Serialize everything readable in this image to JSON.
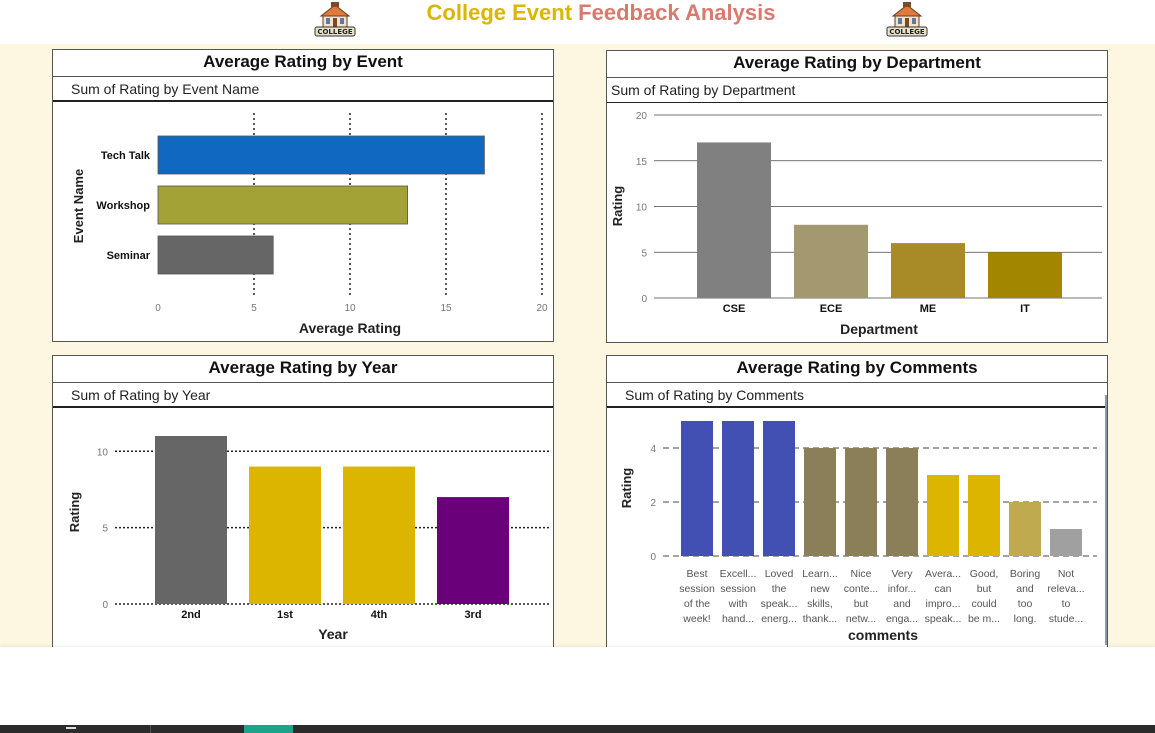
{
  "header": {
    "title_part1": "College Event",
    "title_part2": "Feedback Analysis",
    "logo_text": "COLLEGE"
  },
  "colors": {
    "title_gold": "#d9b600",
    "title_rose": "#d97a6e",
    "canvas_bg": "#fdf6e0"
  },
  "chart_data": [
    {
      "id": "event",
      "type": "bar",
      "orientation": "horizontal",
      "title": "Average Rating by Event",
      "subtitle": "Sum of Rating by Event Name",
      "xlabel": "Average Rating",
      "ylabel": "Event Name",
      "categories": [
        "Tech Talk",
        "Workshop",
        "Seminar"
      ],
      "values": [
        17,
        13,
        6
      ],
      "colors": [
        "#1168c1",
        "#a3a237",
        "#666666"
      ],
      "xlim": [
        0,
        20
      ],
      "ticks": [
        0,
        5,
        10,
        15,
        20
      ],
      "grid": "vertical-dotted"
    },
    {
      "id": "department",
      "type": "bar",
      "title": "Average Rating by Department",
      "subtitle": "Sum of Rating by Department",
      "xlabel": "Department",
      "ylabel": "Rating",
      "categories": [
        "CSE",
        "ECE",
        "ME",
        "IT"
      ],
      "values": [
        17,
        8,
        6,
        5
      ],
      "colors": [
        "#808080",
        "#a39870",
        "#a88b27",
        "#a38600"
      ],
      "ylim": [
        0,
        20
      ],
      "ticks": [
        0,
        5,
        10,
        15,
        20
      ],
      "grid": "horizontal-solid"
    },
    {
      "id": "year",
      "type": "bar",
      "title": "Average Rating by Year",
      "subtitle": "Sum of Rating by Year",
      "xlabel": "Year",
      "ylabel": "Rating",
      "categories": [
        "2nd",
        "1st",
        "4th",
        "3rd"
      ],
      "values": [
        11,
        9,
        9,
        7
      ],
      "colors": [
        "#666666",
        "#dbb500",
        "#dbb500",
        "#6b007b"
      ],
      "ylim": [
        0,
        11
      ],
      "ticks": [
        0,
        5,
        10
      ],
      "grid": "horizontal-dotted"
    },
    {
      "id": "comments",
      "type": "bar",
      "title": "Average Rating by Comments",
      "subtitle": "Sum of Rating by Comments",
      "xlabel": "comments",
      "ylabel": "Rating",
      "categories": [
        [
          "Best",
          "session",
          "of the",
          "week!"
        ],
        [
          "Excell...",
          "session",
          "with",
          "hand..."
        ],
        [
          "Loved",
          "the",
          "speak...",
          "energ..."
        ],
        [
          "Learn...",
          "new",
          "skills,",
          "thank..."
        ],
        [
          "Nice",
          "conte...",
          "but",
          "netw..."
        ],
        [
          "Very",
          "infor...",
          "and",
          "enga..."
        ],
        [
          "Avera...",
          "can",
          "impro...",
          "speak..."
        ],
        [
          "Good,",
          "but",
          "could",
          "be m..."
        ],
        [
          "Boring",
          "and",
          "too",
          "long."
        ],
        [
          "Not",
          "releva...",
          "to",
          "stude..."
        ]
      ],
      "values": [
        5,
        5,
        5,
        4,
        4,
        4,
        3,
        3,
        2,
        1
      ],
      "colors": [
        "#4150b2",
        "#4150b2",
        "#4150b2",
        "#8b7f5a",
        "#8b7f5a",
        "#8b7f5a",
        "#dbb500",
        "#dbb500",
        "#bfaa50",
        "#a0a0a0"
      ],
      "ylim": [
        0,
        5
      ],
      "ticks": [
        0,
        2,
        4
      ],
      "grid": "horizontal-dashed"
    }
  ]
}
